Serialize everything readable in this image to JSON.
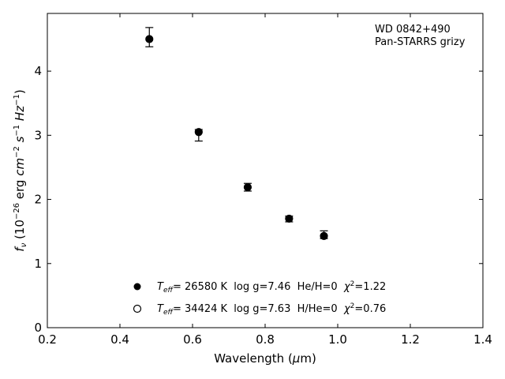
{
  "chart_data": {
    "type": "scatter",
    "xlabel": "Wavelength (μm)",
    "ylabel": "f_ν (10^−26 erg cm^−2 s^−1 Hz^−1)",
    "xlim": [
      0.2,
      1.4
    ],
    "ylim": [
      0,
      4.9
    ],
    "x_ticks": [
      0.2,
      0.4,
      0.6,
      0.8,
      1.0,
      1.2,
      1.4
    ],
    "x_tick_labels": [
      "0.2",
      "0.4",
      "0.6",
      "0.8",
      "1.0",
      "1.2",
      "1.4"
    ],
    "y_ticks": [
      0,
      1,
      2,
      3,
      4
    ],
    "y_tick_labels": [
      "0",
      "1",
      "2",
      "3",
      "4"
    ],
    "grid": false,
    "annotation": {
      "line1": "WD 0842+490",
      "line2": "Pan-STARRS grizy",
      "placement": "top-right"
    },
    "legend_placement": "bottom-left",
    "series": [
      {
        "name": "T_eff= 26580 K  log g=7.46  He/H=0  χ²=1.22",
        "marker": "filled-circle",
        "color": "#000000",
        "points": [
          {
            "x": 0.481,
            "y": 4.5,
            "err_low": 0.12,
            "err_high": 0.18
          },
          {
            "x": 0.617,
            "y": 3.05,
            "err_low": 0.14,
            "err_high": 0.04
          },
          {
            "x": 0.752,
            "y": 2.19,
            "err_low": 0.06,
            "err_high": 0.06
          },
          {
            "x": 0.866,
            "y": 1.7,
            "err_low": 0.05,
            "err_high": 0.04
          },
          {
            "x": 0.962,
            "y": 1.43,
            "err_low": 0.04,
            "err_high": 0.08
          }
        ]
      },
      {
        "name": "T_eff= 34424 K  log g=7.63  H/He=0  χ²=0.76",
        "marker": "open-circle",
        "color": "#000000",
        "points": [
          {
            "x": 0.481,
            "y": 4.5
          },
          {
            "x": 0.617,
            "y": 3.05
          },
          {
            "x": 0.752,
            "y": 2.19
          },
          {
            "x": 0.866,
            "y": 1.7
          },
          {
            "x": 0.962,
            "y": 1.43
          }
        ]
      }
    ],
    "legend_parts": [
      {
        "t_sym": "T",
        "t_sub": "eff",
        "rest": "= 26580 K  log g=7.46  He/H=0  ",
        "chi": "χ",
        "sup": "2",
        "chi_val": "=1.22"
      },
      {
        "t_sym": "T",
        "t_sub": "eff",
        "rest": "= 34424 K  log g=7.63  H/He=0  ",
        "chi": "χ",
        "sup": "2",
        "chi_val": "=0.76"
      }
    ],
    "xlabel_parts": {
      "pre": "Wavelength (",
      "mu": "μ",
      "post": "m)"
    },
    "ylabel_parts": {
      "f": "f",
      "nu": "ν",
      "open": " (10",
      "exp1": "−26",
      "erg": " erg ",
      "cm": "cm",
      "exp2": "−2",
      "s": " s",
      "exp3": "−1",
      "hz": " Hz",
      "exp4": "−1",
      "close": ")"
    }
  }
}
